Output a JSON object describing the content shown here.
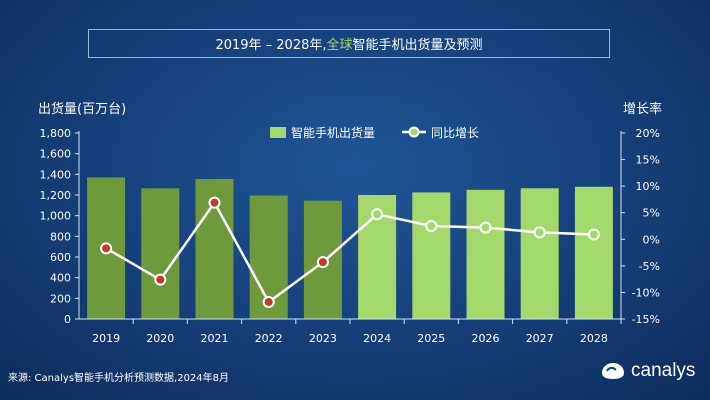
{
  "title": {
    "years": "2019年 – 2028年,",
    "accent": "全球",
    "rest": "智能手机出货量及预测"
  },
  "footer": {
    "source": "来源: Canalys智能手机分析预测数据,2024年8月"
  },
  "logo": {
    "text": "canalys",
    "icon": "canalys-logo-icon"
  },
  "colors": {
    "bar_actual": "#6e9a3c",
    "bar_forecast": "#a3d86b",
    "line": "#ffffff",
    "marker_actual_fill": "#c0392b",
    "marker_forecast_fill": "#a3d86b",
    "axis_text": "#ffffff",
    "title_accent": "#a3d86b"
  },
  "chart_data": {
    "type": "bar+line",
    "categories": [
      "2019",
      "2020",
      "2021",
      "2022",
      "2023",
      "2024",
      "2025",
      "2026",
      "2027",
      "2028"
    ],
    "series": [
      {
        "name": "智能手机出货量",
        "type": "bar",
        "axis": "left",
        "values": [
          1370,
          1265,
          1355,
          1195,
          1145,
          1200,
          1225,
          1250,
          1265,
          1280
        ]
      },
      {
        "name": "同比增长",
        "type": "line",
        "axis": "right",
        "values": [
          -1.7,
          -7.6,
          6.9,
          -11.8,
          -4.3,
          4.7,
          2.5,
          2.2,
          1.3,
          0.9
        ]
      }
    ],
    "forecast_from": "2024",
    "ylabel_left": "出货量(百万台)",
    "ylabel_right": "增长率",
    "ylim_left": [
      0,
      1800
    ],
    "ylim_right": [
      -15,
      20
    ],
    "yticks_left": [
      "0",
      "200",
      "400",
      "600",
      "800",
      "1,000",
      "1,200",
      "1,400",
      "1,600",
      "1,800"
    ],
    "yticks_right": [
      "-15%",
      "-10%",
      "-5%",
      "0%",
      "5%",
      "10%",
      "15%",
      "20%"
    ],
    "legend": [
      "智能手机出货量",
      "同比增长"
    ],
    "legend_position": "top-center",
    "grid": false
  }
}
